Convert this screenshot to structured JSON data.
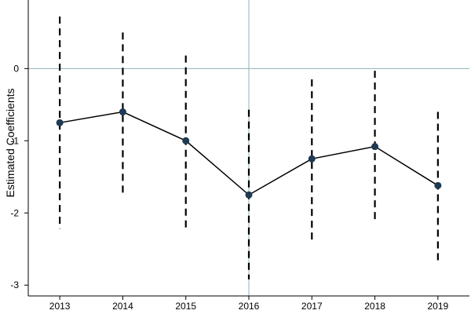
{
  "chart_data": {
    "type": "line",
    "title": "",
    "xlabel": "",
    "ylabel": "Estimated Coefficients",
    "x": [
      2013,
      2014,
      2015,
      2016,
      2017,
      2018,
      2019
    ],
    "x_tick_labels": [
      "2013",
      "2014",
      "2015",
      "2016",
      "2017",
      "2018",
      "2019"
    ],
    "y_ticks": [
      0,
      -1,
      -2,
      -3
    ],
    "y_tick_labels": [
      "0",
      "-1",
      "-2",
      "-3"
    ],
    "ylim": [
      -3.15,
      0.95
    ],
    "xlim": [
      2012.5,
      2019.5
    ],
    "series": [
      {
        "values": [
          -0.75,
          -0.6,
          -1.0,
          -1.75,
          -1.25,
          -1.08,
          -1.62
        ],
        "ci_lower": [
          -2.22,
          -1.72,
          -2.22,
          -2.92,
          -2.37,
          -2.15,
          -2.68
        ],
        "ci_upper": [
          0.72,
          0.5,
          0.18,
          -0.57,
          -0.15,
          -0.03,
          -0.6
        ]
      }
    ],
    "reference_lines": {
      "y": 0,
      "x": 2016
    },
    "colors": {
      "point": "#1f3a52",
      "line": "#000000",
      "ci": "#000000",
      "reference": "#8fb3b8"
    },
    "grid": false,
    "legend": "none"
  }
}
